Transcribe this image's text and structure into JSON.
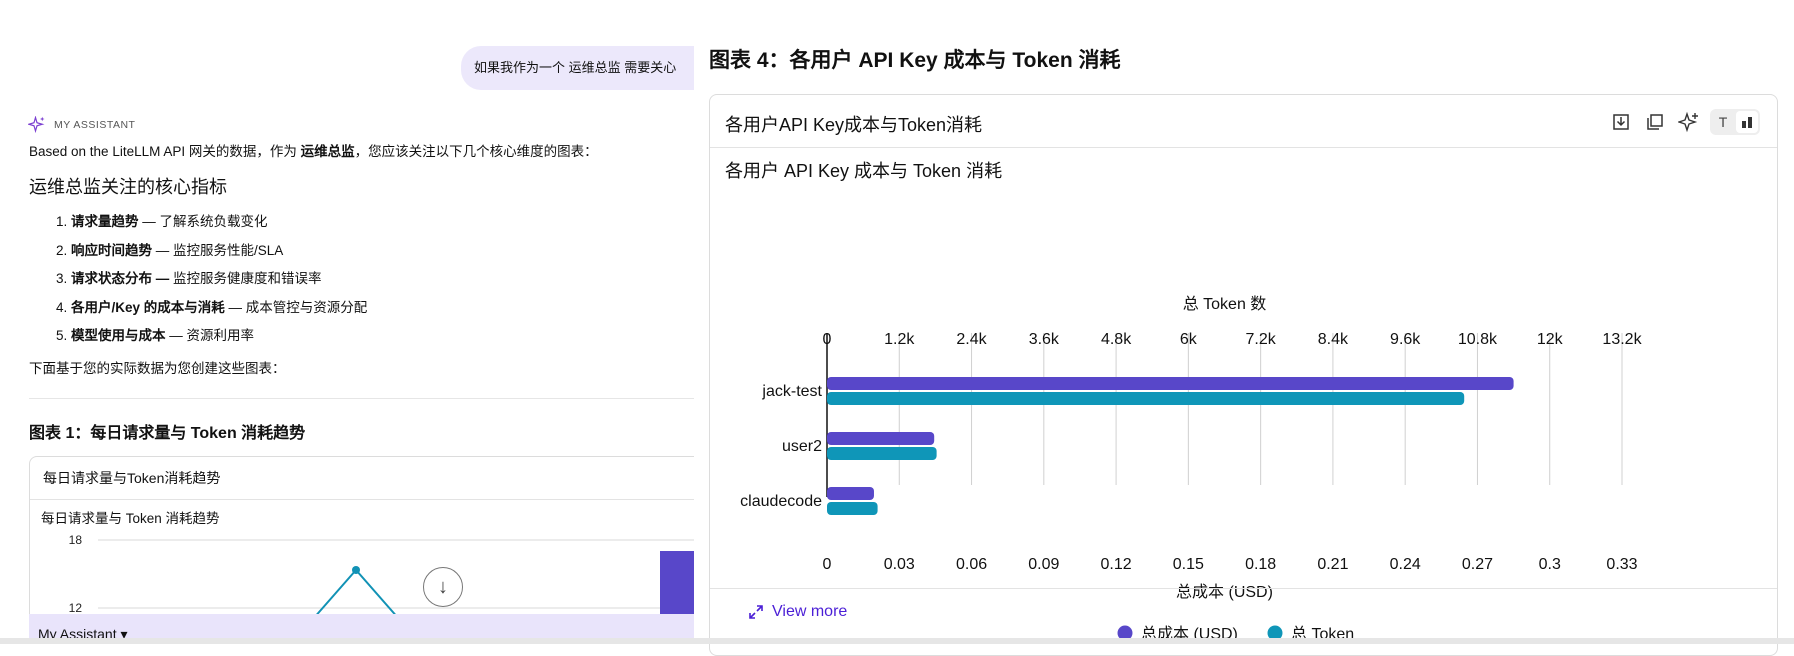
{
  "chat": {
    "user_message": "如果我作为一个 运维总监 需要关心",
    "assistant_label": "MY ASSISTANT",
    "intro_prefix": "Based on the LiteLLM API 网关的数据，作为 ",
    "intro_bold": "运维总监",
    "intro_suffix": "，您应该关注以下几个核心维度的图表：",
    "section_heading": "运维总监关注的核心指标",
    "metrics": [
      {
        "bold": "请求量趋势",
        "rest": " — 了解系统负载变化"
      },
      {
        "bold": "响应时间趋势",
        "rest": " — 监控服务性能/SLA"
      },
      {
        "bold": "请求状态分布 —",
        "rest": " 监控服务健康度和错误率"
      },
      {
        "bold": "各用户/Key 的成本与消耗",
        "rest": " — 成本管控与资源分配"
      },
      {
        "bold": "模型使用与成本",
        "rest": " — 资源利用率"
      }
    ],
    "below_text": "下面基于您的实际数据为您创建这些图表：",
    "figure1_title": "图表 1：每日请求量与 Token 消耗趋势",
    "figure1_card_header": "每日请求量与Token消耗趋势",
    "figure1_chart_title": "每日请求量与 Token 消耗趋势",
    "figure1_y_ticks": [
      "18",
      "12"
    ],
    "assistant_bar_label": "My Assistant",
    "colors": {
      "bubble": "#ece8fb",
      "accent": "#5b47c7"
    }
  },
  "figure4": {
    "title": "图表 4：各用户 API Key 成本与 Token 消耗",
    "card_header": "各用户API Key成本与Token消耗",
    "tools": [
      "download-icon",
      "copy-icon",
      "ai-edit-icon",
      "text-view-icon",
      "chart-view-icon"
    ],
    "view_more_label": "View more"
  },
  "chart_data": {
    "type": "bar",
    "orientation": "horizontal",
    "title": "各用户 API Key 成本与 Token 消耗",
    "categories": [
      "jack-test",
      "user2",
      "claudecode"
    ],
    "series": [
      {
        "name": "总成本 (USD)",
        "axis": "bottom",
        "color": "#5847c9",
        "values": [
          0.285,
          0.0445,
          0.0195
        ]
      },
      {
        "name": "总 Token",
        "axis": "top",
        "color": "#0f96b8",
        "values": [
          10580,
          1820,
          840
        ]
      }
    ],
    "top_axis": {
      "label": "总 Token 数",
      "range": [
        0,
        13200
      ],
      "ticks": [
        "0",
        "1.2k",
        "2.4k",
        "3.6k",
        "4.8k",
        "6k",
        "7.2k",
        "8.4k",
        "9.6k",
        "10.8k",
        "12k",
        "13.2k"
      ]
    },
    "bottom_axis": {
      "label": "总成本 (USD)",
      "range": [
        0,
        0.33
      ],
      "ticks": [
        "0",
        "0.03",
        "0.06",
        "0.09",
        "0.12",
        "0.15",
        "0.18",
        "0.21",
        "0.24",
        "0.27",
        "0.3",
        "0.33"
      ]
    },
    "grid": true,
    "legend_position": "bottom-center"
  }
}
